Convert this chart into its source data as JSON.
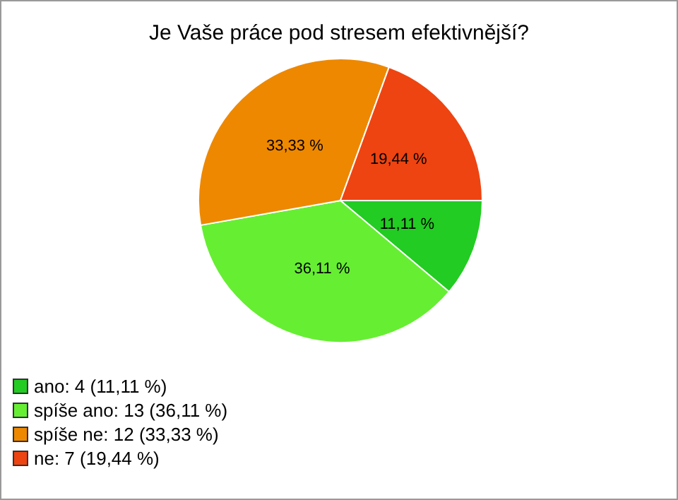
{
  "chart_data": {
    "type": "pie",
    "title": "Je Vaše práce pod stresem efektivnější?",
    "categories": [
      "ano: 4 (11,11 %)",
      "spíše ano: 13 (36,11 %)",
      "spíše ne: 12 (33,33 %)",
      "ne: 7 (19,44 %)"
    ],
    "values": [
      11.11,
      36.11,
      33.33,
      19.44
    ],
    "value_labels": [
      "11,11 %",
      "36,11 %",
      "33,33 %",
      "19,44 %"
    ],
    "colors": [
      "#22cc22",
      "#66ee33",
      "#ee8800",
      "#ee4411"
    ],
    "legend": "bottom left"
  }
}
